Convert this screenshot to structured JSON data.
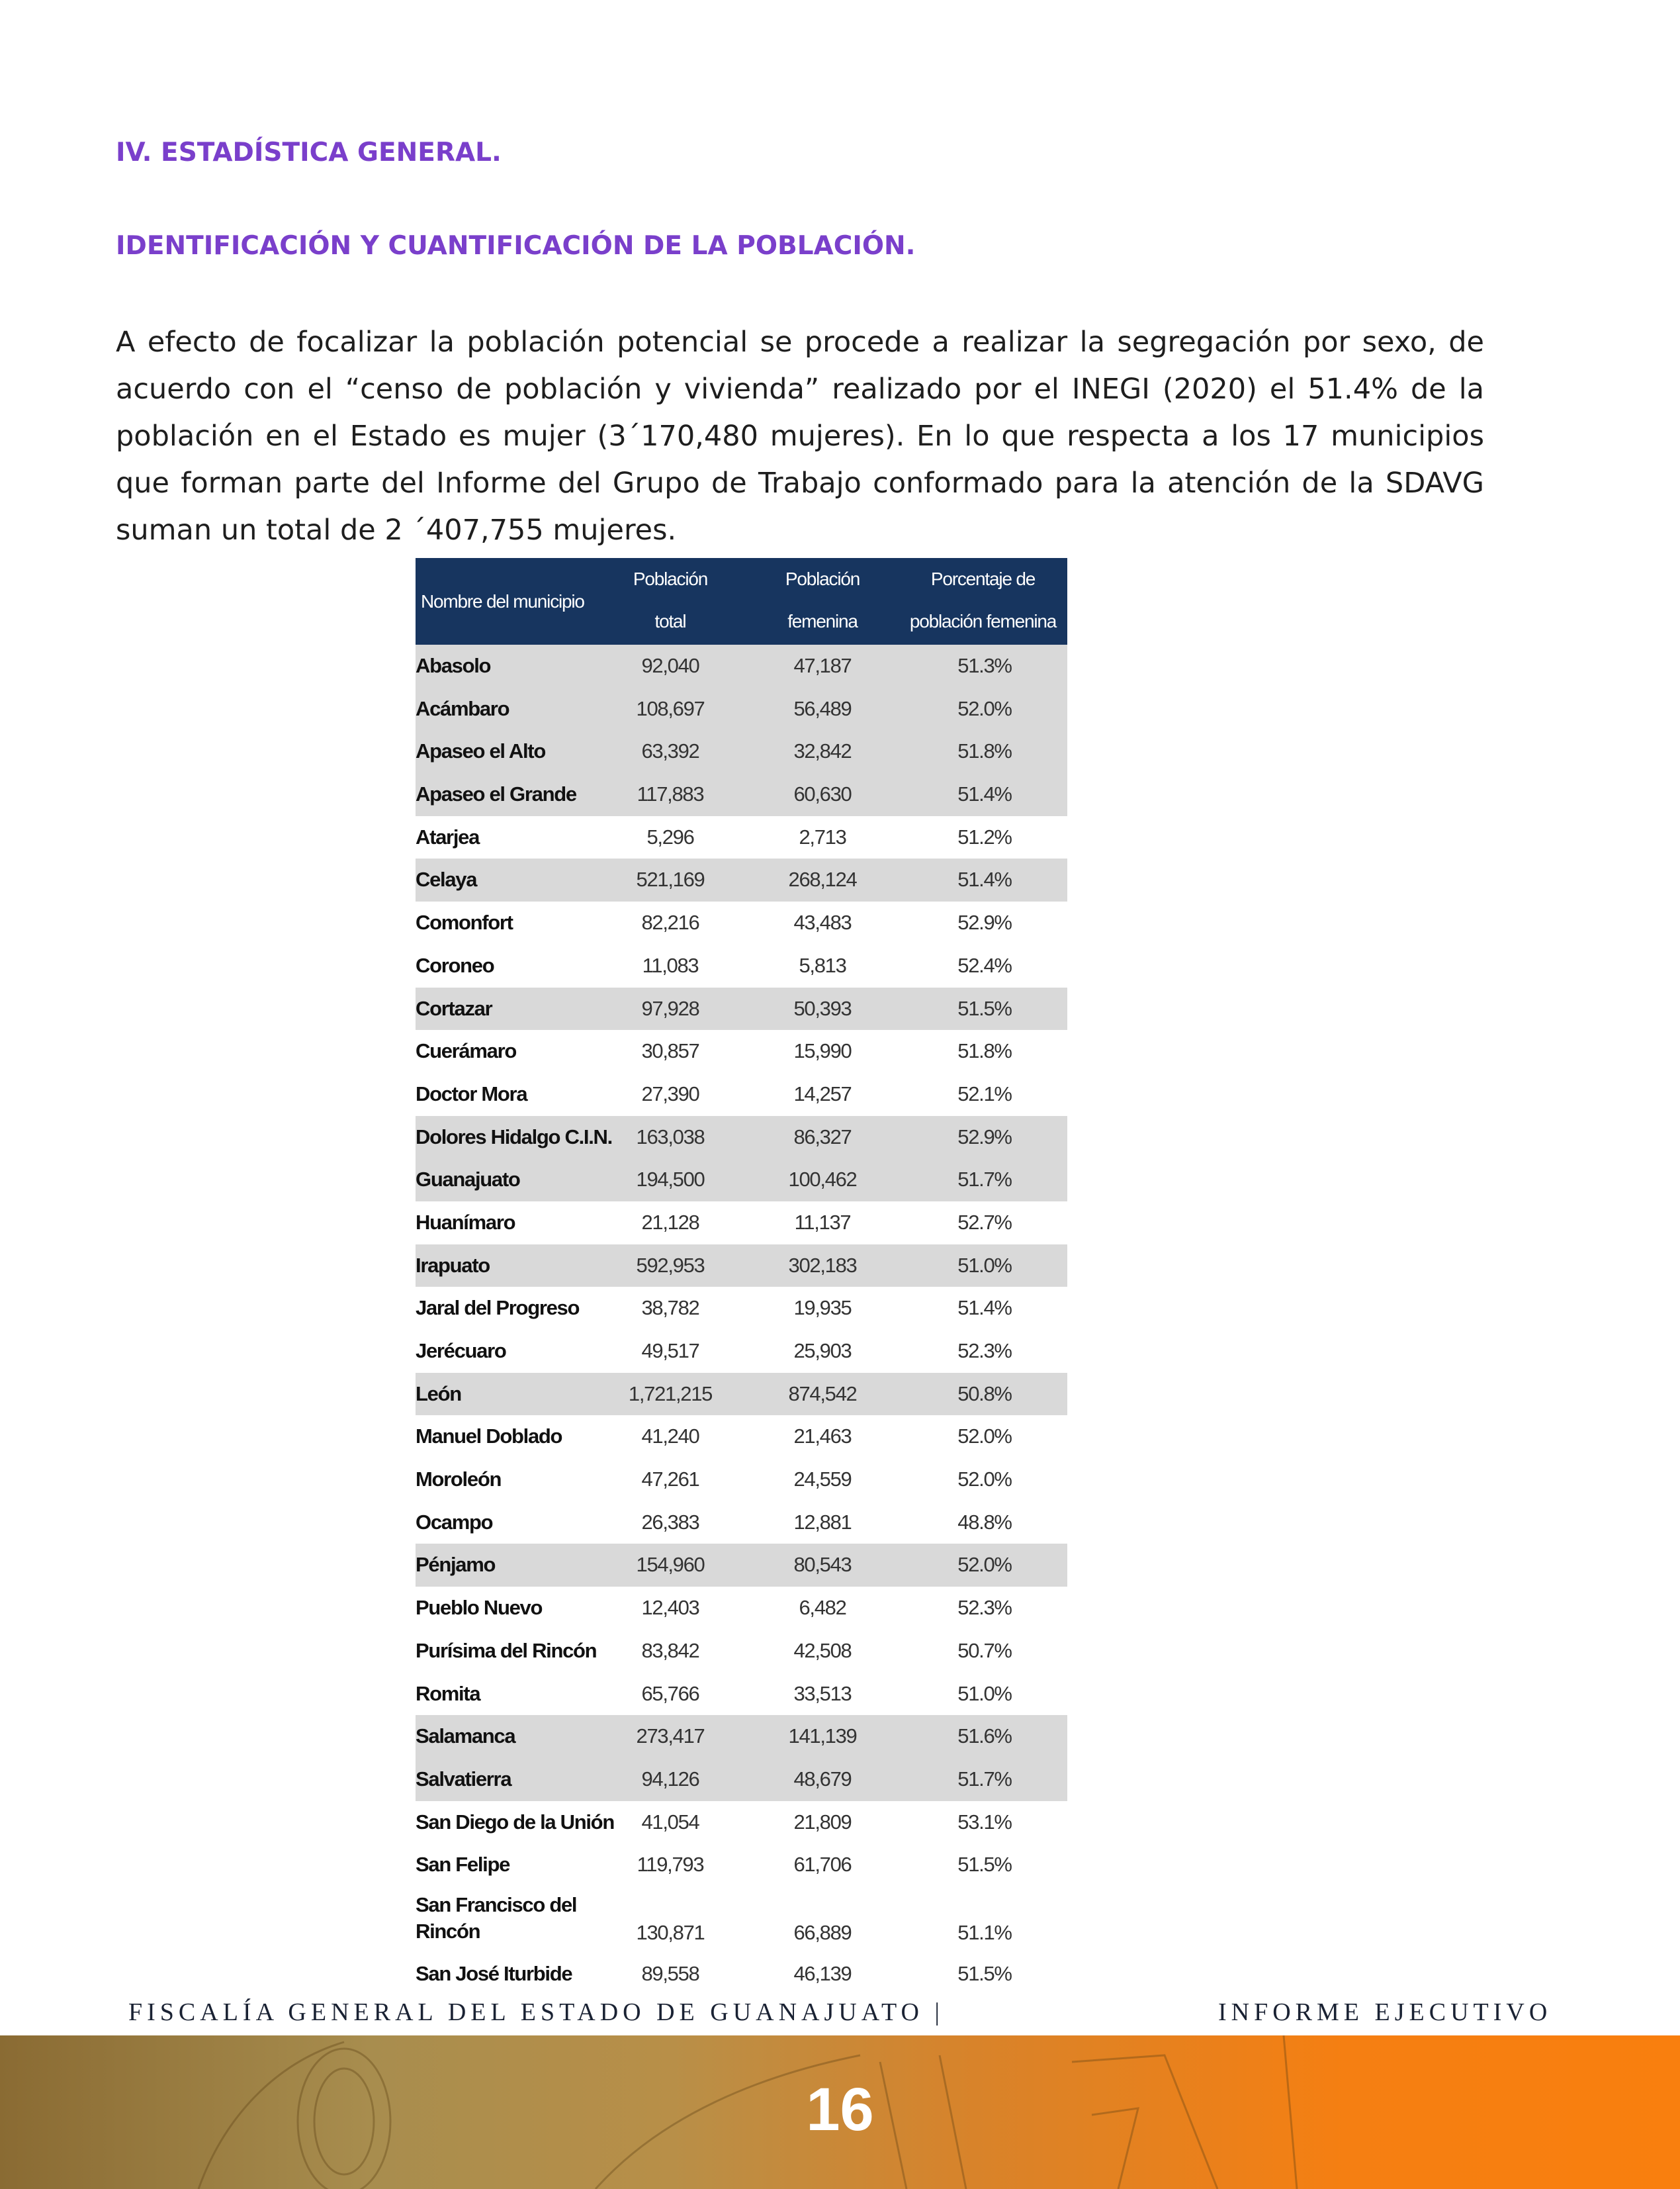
{
  "section_title": "IV. ESTADÍSTICA GENERAL.",
  "subsection_title": "IDENTIFICACIÓN Y CUANTIFICACIÓN DE LA POBLACIÓN.",
  "paragraph": "A efecto de focalizar la población potencial se procede a realizar la segregación por sexo, de acuerdo con el “censo de población y vivienda” realizado por el INEGI (2020) el 51.4% de la población en el Estado es mujer (3´170,480 mujeres). En lo que respecta a los 17 municipios que forman parte del Informe del Grupo de Trabajo conformado para la atención de la SDAVG suman un total de 2 ´407,755 mujeres.",
  "table": {
    "header_color": "#17355f",
    "shade_color": "#d9d9d9",
    "headers": {
      "name": "Nombre del municipio",
      "total_1": "Población",
      "total_2": "total",
      "fem_1": "Población",
      "fem_2": "femenina",
      "pct_1": "Porcentaje de",
      "pct_2": "población femenina"
    },
    "rows": [
      {
        "name": "Abasolo",
        "total": "92,040",
        "fem": "47,187",
        "pct": "51.3%",
        "shaded": true
      },
      {
        "name": "Acámbaro",
        "total": "108,697",
        "fem": "56,489",
        "pct": "52.0%",
        "shaded": true
      },
      {
        "name": "Apaseo el Alto",
        "total": "63,392",
        "fem": "32,842",
        "pct": "51.8%",
        "shaded": true
      },
      {
        "name": "Apaseo el Grande",
        "total": "117,883",
        "fem": "60,630",
        "pct": "51.4%",
        "shaded": true
      },
      {
        "name": "Atarjea",
        "total": "5,296",
        "fem": "2,713",
        "pct": "51.2%",
        "shaded": false
      },
      {
        "name": "Celaya",
        "total": "521,169",
        "fem": "268,124",
        "pct": "51.4%",
        "shaded": true
      },
      {
        "name": "Comonfort",
        "total": "82,216",
        "fem": "43,483",
        "pct": "52.9%",
        "shaded": false
      },
      {
        "name": "Coroneo",
        "total": "11,083",
        "fem": "5,813",
        "pct": "52.4%",
        "shaded": false
      },
      {
        "name": "Cortazar",
        "total": "97,928",
        "fem": "50,393",
        "pct": "51.5%",
        "shaded": true
      },
      {
        "name": "Cuerámaro",
        "total": "30,857",
        "fem": "15,990",
        "pct": "51.8%",
        "shaded": false
      },
      {
        "name": "Doctor Mora",
        "total": "27,390",
        "fem": "14,257",
        "pct": "52.1%",
        "shaded": false
      },
      {
        "name": "Dolores Hidalgo C.I.N.",
        "total": "163,038",
        "fem": "86,327",
        "pct": "52.9%",
        "shaded": true
      },
      {
        "name": "Guanajuato",
        "total": "194,500",
        "fem": "100,462",
        "pct": "51.7%",
        "shaded": true
      },
      {
        "name": "Huanímaro",
        "total": "21,128",
        "fem": "11,137",
        "pct": "52.7%",
        "shaded": false
      },
      {
        "name": "Irapuato",
        "total": "592,953",
        "fem": "302,183",
        "pct": "51.0%",
        "shaded": true
      },
      {
        "name": "Jaral del Progreso",
        "total": "38,782",
        "fem": "19,935",
        "pct": "51.4%",
        "shaded": false
      },
      {
        "name": "Jerécuaro",
        "total": "49,517",
        "fem": "25,903",
        "pct": "52.3%",
        "shaded": false
      },
      {
        "name": "León",
        "total": "1,721,215",
        "fem": "874,542",
        "pct": "50.8%",
        "shaded": true
      },
      {
        "name": "Manuel Doblado",
        "total": "41,240",
        "fem": "21,463",
        "pct": "52.0%",
        "shaded": false
      },
      {
        "name": "Moroleón",
        "total": "47,261",
        "fem": "24,559",
        "pct": "52.0%",
        "shaded": false
      },
      {
        "name": "Ocampo",
        "total": "26,383",
        "fem": "12,881",
        "pct": "48.8%",
        "shaded": false
      },
      {
        "name": "Pénjamo",
        "total": "154,960",
        "fem": "80,543",
        "pct": "52.0%",
        "shaded": true
      },
      {
        "name": "Pueblo Nuevo",
        "total": "12,403",
        "fem": "6,482",
        "pct": "52.3%",
        "shaded": false
      },
      {
        "name": "Purísima del Rincón",
        "total": "83,842",
        "fem": "42,508",
        "pct": "50.7%",
        "shaded": false
      },
      {
        "name": "Romita",
        "total": "65,766",
        "fem": "33,513",
        "pct": "51.0%",
        "shaded": false
      },
      {
        "name": "Salamanca",
        "total": "273,417",
        "fem": "141,139",
        "pct": "51.6%",
        "shaded": true
      },
      {
        "name": "Salvatierra",
        "total": "94,126",
        "fem": "48,679",
        "pct": "51.7%",
        "shaded": true
      },
      {
        "name": "San Diego de la Unión",
        "total": "41,054",
        "fem": "21,809",
        "pct": "53.1%",
        "shaded": false
      },
      {
        "name": "San Felipe",
        "total": "119,793",
        "fem": "61,706",
        "pct": "51.5%",
        "shaded": false
      },
      {
        "name": "San Francisco del Rincón",
        "total": "130,871",
        "fem": "66,889",
        "pct": "51.1%",
        "shaded": false,
        "wrap": true
      },
      {
        "name": "San José Iturbide",
        "total": "89,558",
        "fem": "46,139",
        "pct": "51.5%",
        "shaded": false
      }
    ]
  },
  "footer": {
    "left": "FISCALÍA GENERAL DEL ESTADO DE GUANAJUATO |",
    "right": "INFORME EJECUTIVO",
    "page_number": "16",
    "band_colors": [
      "#8a6b33",
      "#f97f0e"
    ]
  }
}
